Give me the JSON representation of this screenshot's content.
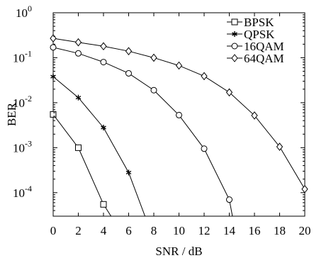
{
  "chart_data": {
    "type": "line",
    "title": "",
    "xlabel": "SNR / dB",
    "ylabel": "BER",
    "xlim": [
      0,
      20
    ],
    "ylim": [
      3e-05,
      1
    ],
    "yscale": "log",
    "grid": false,
    "legend_position": "top-right",
    "x_ticks": [
      0,
      2,
      4,
      6,
      8,
      10,
      12,
      14,
      16,
      18,
      20
    ],
    "x_tick_labels": [
      "0",
      "2",
      "4",
      "6",
      "8",
      "10",
      "12",
      "14",
      "16",
      "18",
      "20"
    ],
    "y_ticks": [
      1,
      0.1,
      0.01,
      0.001,
      0.0001
    ],
    "y_tick_labels": [
      {
        "base": "10",
        "exp": "0"
      },
      {
        "base": "10",
        "exp": "-1"
      },
      {
        "base": "10",
        "exp": "-2"
      },
      {
        "base": "10",
        "exp": "-3"
      },
      {
        "base": "10",
        "exp": "-4"
      }
    ],
    "series": [
      {
        "name": "BPSK",
        "marker": "square",
        "x": [
          0,
          2,
          4,
          4.6
        ],
        "y": [
          0.0055,
          0.001,
          5.5e-05,
          3e-05
        ]
      },
      {
        "name": "QPSK",
        "marker": "asterisk",
        "x": [
          0,
          2,
          4,
          6,
          7.3
        ],
        "y": [
          0.038,
          0.013,
          0.0028,
          0.00028,
          3e-05
        ]
      },
      {
        "name": "16QAM",
        "marker": "circle",
        "x": [
          0,
          2,
          4,
          6,
          8,
          10,
          12,
          14,
          14.25
        ],
        "y": [
          0.17,
          0.125,
          0.08,
          0.045,
          0.019,
          0.0053,
          0.00095,
          7e-05,
          3e-05
        ]
      },
      {
        "name": "64QAM",
        "marker": "diamond",
        "x": [
          0,
          2,
          4,
          6,
          8,
          10,
          12,
          14,
          16,
          18,
          20
        ],
        "y": [
          0.27,
          0.22,
          0.18,
          0.14,
          0.1,
          0.067,
          0.039,
          0.017,
          0.0052,
          0.00105,
          0.00012
        ]
      }
    ]
  }
}
